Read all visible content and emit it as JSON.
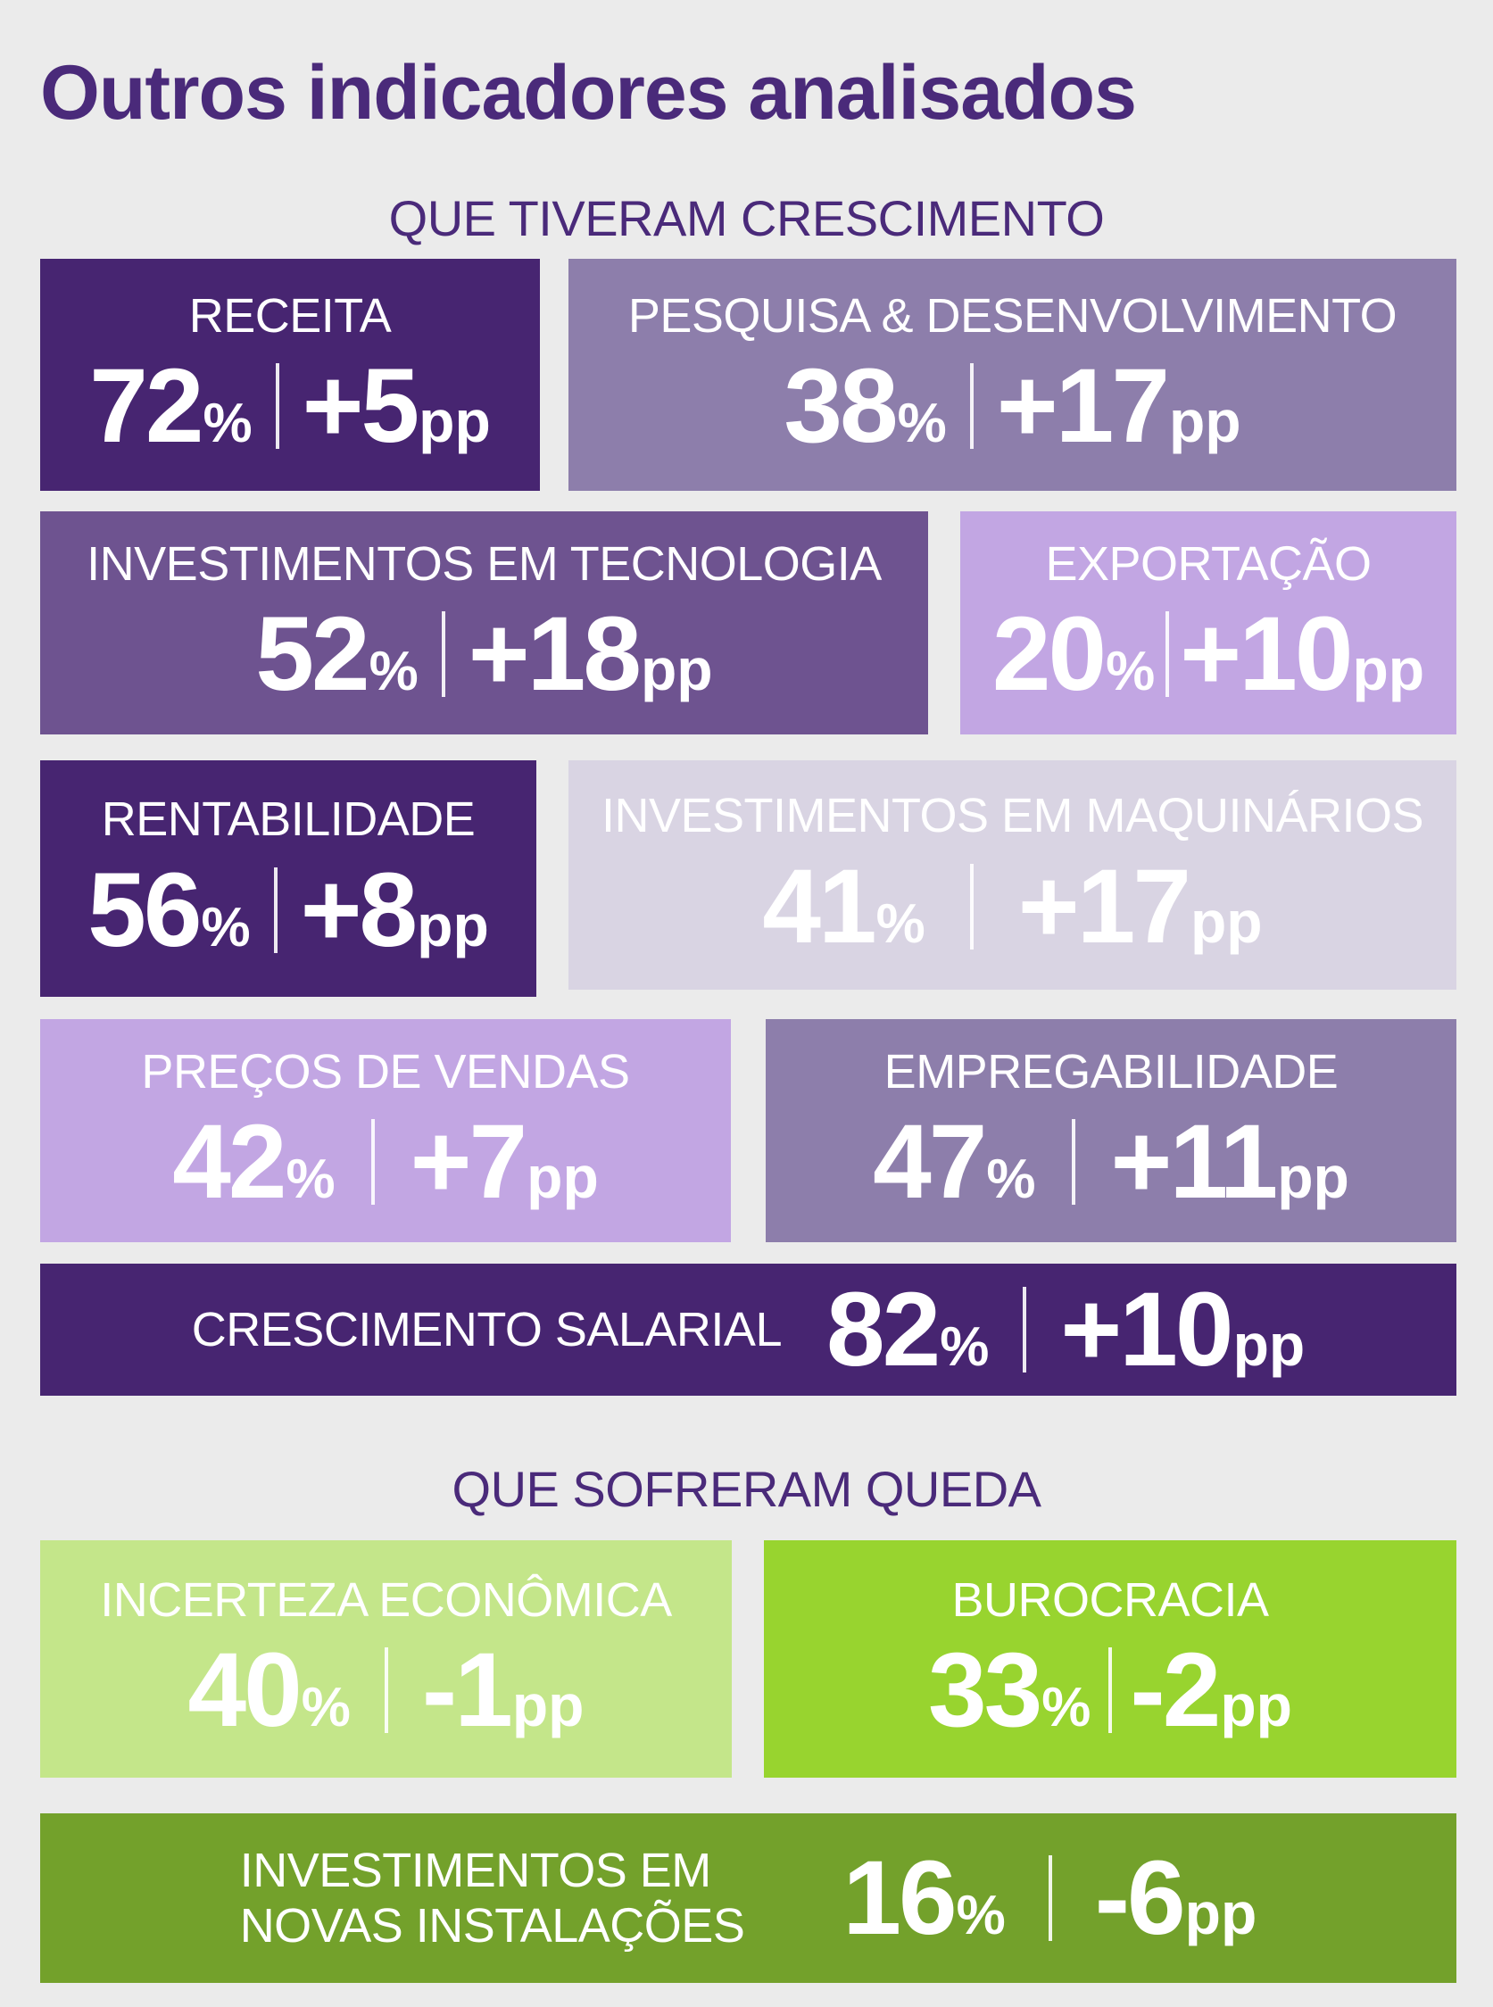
{
  "title": "Outros indicadores analisados",
  "growth_heading": "QUE TIVERAM CRESCIMENTO",
  "decline_heading": "QUE SOFRERAM QUEDA",
  "colors": {
    "background": "#ebebeb",
    "title": "#4a2a7a",
    "dark_purple": "#472571",
    "mid_purple": "#8d7eab",
    "violet": "#6e5390",
    "lavender": "#c2a6e3",
    "pale_lavender": "#d9d4e3",
    "light_green": "#c4e68a",
    "green": "#98d42f",
    "dark_green": "#73a12b"
  },
  "growth": {
    "receita": {
      "label": "RECEITA",
      "value": "72",
      "unit": "%",
      "change": "+5",
      "change_unit": "pp"
    },
    "pd": {
      "label": "PESQUISA & DESENVOLVIMENTO",
      "value": "38",
      "unit": "%",
      "change": "+17",
      "change_unit": "pp"
    },
    "tecnologia": {
      "label": "INVESTIMENTOS EM TECNOLOGIA",
      "value": "52",
      "unit": "%",
      "change": "+18",
      "change_unit": "pp"
    },
    "exportacao": {
      "label": "EXPORTAÇÃO",
      "value": "20",
      "unit": "%",
      "change": "+10",
      "change_unit": "pp"
    },
    "rentabilidade": {
      "label": "RENTABILIDADE",
      "value": "56",
      "unit": "%",
      "change": "+8",
      "change_unit": "pp"
    },
    "maquinarios": {
      "label": "INVESTIMENTOS EM MAQUINÁRIOS",
      "value": "41",
      "unit": "%",
      "change": "+17",
      "change_unit": "pp"
    },
    "precos": {
      "label": "PREÇOS DE VENDAS",
      "value": "42",
      "unit": "%",
      "change": "+7",
      "change_unit": "pp"
    },
    "empregabilidade": {
      "label": "EMPREGABILIDADE",
      "value": "47",
      "unit": "%",
      "change": "+11",
      "change_unit": "pp"
    },
    "salarial": {
      "label": "CRESCIMENTO SALARIAL",
      "value": "82",
      "unit": "%",
      "change": "+10",
      "change_unit": "pp"
    }
  },
  "decline": {
    "incerteza": {
      "label": "INCERTEZA ECONÔMICA",
      "value": "40",
      "unit": "%",
      "change": "-1",
      "change_unit": "pp"
    },
    "burocracia": {
      "label": "BUROCRACIA",
      "value": "33",
      "unit": "%",
      "change": "-2",
      "change_unit": "pp"
    },
    "instalacoes": {
      "label_line1": "INVESTIMENTOS EM",
      "label_line2": "NOVAS INSTALAÇÕES",
      "value": "16",
      "unit": "%",
      "change": "-6",
      "change_unit": "pp"
    }
  }
}
